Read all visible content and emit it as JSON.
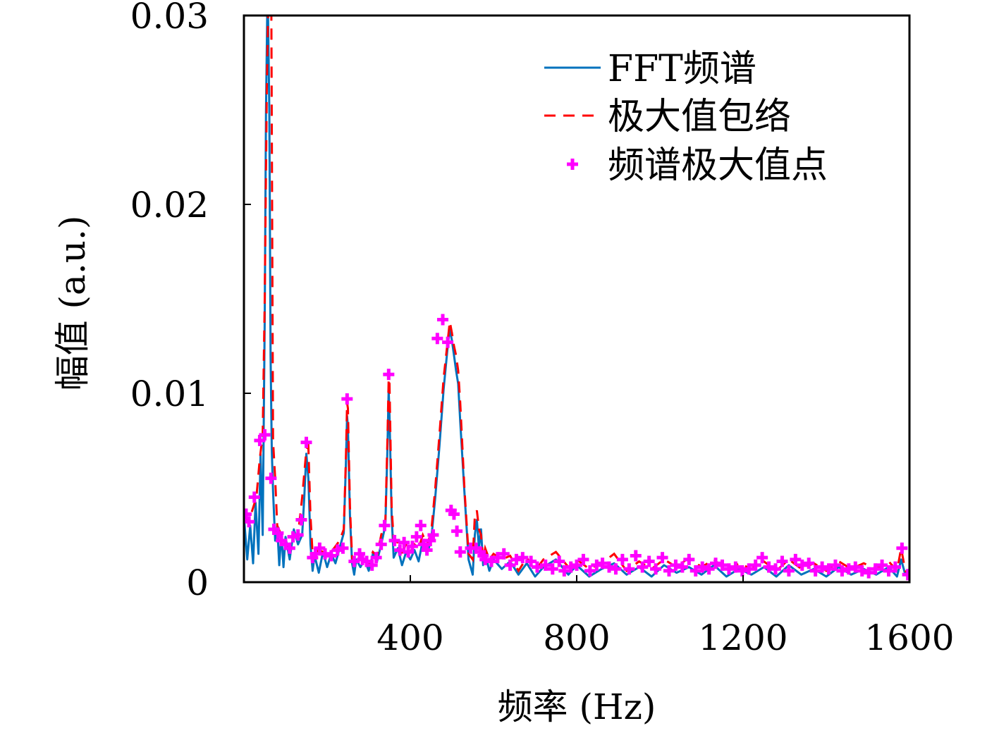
{
  "chart_data": {
    "type": "line",
    "xlabel": "频率 (Hz)",
    "ylabel": "幅值 (a.u.)",
    "xlim": [
      0,
      1600
    ],
    "ylim": [
      0,
      0.03
    ],
    "xticks": [
      400,
      800,
      1200,
      1600
    ],
    "xtick_labels": [
      "400",
      "800",
      "1200",
      "1600"
    ],
    "yticks": [
      0,
      0.01,
      0.02,
      0.03
    ],
    "ytick_labels": [
      "0",
      "0.01",
      "0.02",
      "0.03"
    ],
    "grid": false,
    "legend_position": "top-right",
    "legend": [
      "FFT频谱",
      "极大值包络",
      "频谱极大值点"
    ],
    "colors": {
      "fft": "#0072BD",
      "envelope": "#FF0000",
      "peaks": "#FF00FF"
    },
    "series": [
      {
        "name": "FFT频谱",
        "style": "solid",
        "x": [
          0,
          8,
          15,
          22,
          28,
          35,
          40,
          45,
          50,
          53,
          56,
          58,
          61,
          64,
          67,
          70,
          75,
          80,
          85,
          90,
          95,
          100,
          110,
          120,
          130,
          140,
          145,
          150,
          155,
          160,
          165,
          170,
          180,
          190,
          200,
          210,
          220,
          230,
          240,
          245,
          248,
          250,
          255,
          260,
          265,
          270,
          280,
          290,
          300,
          310,
          320,
          330,
          340,
          345,
          348,
          350,
          355,
          360,
          370,
          380,
          390,
          400,
          410,
          420,
          430,
          440,
          450,
          460,
          470,
          480,
          490,
          495,
          500,
          505,
          510,
          515,
          520,
          530,
          540,
          550,
          555,
          560,
          565,
          570,
          575,
          580,
          590,
          600,
          620,
          640,
          660,
          680,
          700,
          720,
          750,
          780,
          800,
          830,
          860,
          890,
          920,
          950,
          980,
          1010,
          1040,
          1070,
          1100,
          1130,
          1160,
          1190,
          1220,
          1250,
          1280,
          1310,
          1340,
          1370,
          1400,
          1430,
          1460,
          1490,
          1520,
          1550,
          1570,
          1580,
          1590,
          1600
        ],
        "y": [
          0.0035,
          0.0012,
          0.003,
          0.001,
          0.0042,
          0.0015,
          0.0068,
          0.0025,
          0.014,
          0.025,
          0.03,
          0.03,
          0.025,
          0.012,
          0.007,
          0.0048,
          0.0022,
          0.003,
          0.0009,
          0.0026,
          0.0008,
          0.0024,
          0.0012,
          0.0028,
          0.002,
          0.0025,
          0.0045,
          0.0068,
          0.0055,
          0.002,
          0.0006,
          0.0014,
          0.0005,
          0.0016,
          0.0008,
          0.0015,
          0.001,
          0.0018,
          0.0026,
          0.0062,
          0.0088,
          0.0082,
          0.0035,
          0.001,
          0.0004,
          0.0012,
          0.0008,
          0.0012,
          0.0006,
          0.0015,
          0.0011,
          0.002,
          0.003,
          0.007,
          0.0102,
          0.0088,
          0.0035,
          0.0013,
          0.0018,
          0.0009,
          0.0016,
          0.0012,
          0.0017,
          0.0011,
          0.0022,
          0.0015,
          0.0022,
          0.0045,
          0.0072,
          0.0102,
          0.0125,
          0.0134,
          0.0128,
          0.012,
          0.0112,
          0.0105,
          0.0085,
          0.0048,
          0.0012,
          0.0004,
          0.0025,
          0.0033,
          0.0018,
          0.0028,
          0.0009,
          0.0015,
          0.0006,
          0.0012,
          0.0007,
          0.0011,
          0.0004,
          0.001,
          0.0003,
          0.0008,
          0.0012,
          0.0004,
          0.0009,
          0.0003,
          0.0007,
          0.001,
          0.0004,
          0.0008,
          0.0003,
          0.0009,
          0.0005,
          0.0008,
          0.0004,
          0.0009,
          0.0003,
          0.0007,
          0.0004,
          0.0008,
          0.0003,
          0.0009,
          0.0004,
          0.0007,
          0.0003,
          0.0008,
          0.0004,
          0.0007,
          0.0004,
          0.0008,
          0.0003,
          0.0012,
          0.0004,
          0.0003
        ]
      },
      {
        "name": "极大值包络",
        "style": "dashed",
        "x": [
          0,
          10,
          20,
          30,
          38,
          45,
          50,
          55,
          58,
          60,
          63,
          66,
          70,
          75,
          80,
          90,
          100,
          110,
          120,
          130,
          140,
          150,
          155,
          160,
          165,
          170,
          180,
          190,
          200,
          210,
          220,
          230,
          240,
          245,
          248,
          250,
          255,
          260,
          265,
          270,
          280,
          290,
          300,
          310,
          320,
          330,
          340,
          345,
          348,
          350,
          355,
          360,
          370,
          380,
          390,
          400,
          410,
          420,
          430,
          440,
          450,
          460,
          470,
          480,
          490,
          495,
          500,
          505,
          510,
          515,
          520,
          530,
          540,
          550,
          555,
          560,
          565,
          570,
          575,
          580,
          590,
          600,
          620,
          640,
          660,
          680,
          700,
          720,
          750,
          780,
          800,
          830,
          860,
          890,
          920,
          950,
          980,
          1010,
          1040,
          1070,
          1100,
          1130,
          1160,
          1190,
          1220,
          1250,
          1280,
          1310,
          1340,
          1370,
          1400,
          1430,
          1460,
          1490,
          1520,
          1550,
          1570,
          1580,
          1590,
          1600
        ],
        "y": [
          0.0036,
          0.0032,
          0.0038,
          0.0045,
          0.0065,
          0.0078,
          0.015,
          0.026,
          0.03,
          0.03,
          0.03,
          0.03,
          0.0075,
          0.0055,
          0.003,
          0.0025,
          0.002,
          0.0018,
          0.0025,
          0.0025,
          0.0045,
          0.007,
          0.0072,
          0.0035,
          0.0015,
          0.0015,
          0.0017,
          0.0016,
          0.0015,
          0.0016,
          0.0019,
          0.0022,
          0.0028,
          0.0065,
          0.0095,
          0.0092,
          0.004,
          0.0013,
          0.001,
          0.0012,
          0.0011,
          0.0012,
          0.001,
          0.0016,
          0.0014,
          0.0025,
          0.0032,
          0.0075,
          0.0108,
          0.0105,
          0.004,
          0.0022,
          0.0021,
          0.0016,
          0.002,
          0.0016,
          0.002,
          0.0018,
          0.0025,
          0.002,
          0.0026,
          0.005,
          0.0078,
          0.0108,
          0.0128,
          0.0138,
          0.0132,
          0.0125,
          0.012,
          0.0112,
          0.0095,
          0.005,
          0.0015,
          0.0012,
          0.0035,
          0.0038,
          0.0028,
          0.0025,
          0.0012,
          0.0018,
          0.0012,
          0.0015,
          0.0012,
          0.0014,
          0.0006,
          0.0013,
          0.0006,
          0.0012,
          0.0016,
          0.0008,
          0.0012,
          0.0007,
          0.001,
          0.0015,
          0.0006,
          0.0011,
          0.0007,
          0.0012,
          0.0008,
          0.0013,
          0.0008,
          0.0012,
          0.0006,
          0.001,
          0.0007,
          0.0011,
          0.0006,
          0.0012,
          0.0007,
          0.001,
          0.0006,
          0.0011,
          0.0007,
          0.001,
          0.0007,
          0.0011,
          0.0006,
          0.0018,
          0.0006,
          0.0004
        ]
      },
      {
        "name": "频谱极大值点",
        "style": "markers",
        "x": [
          5,
          12,
          25,
          38,
          50,
          65,
          72,
          82,
          90,
          100,
          110,
          118,
          130,
          138,
          150,
          165,
          172,
          182,
          195,
          210,
          225,
          238,
          248,
          265,
          278,
          285,
          295,
          308,
          318,
          330,
          338,
          348,
          362,
          375,
          385,
          395,
          405,
          415,
          425,
          432,
          440,
          448,
          455,
          465,
          478,
          490,
          498,
          505,
          512,
          520,
          545,
          558,
          568,
          575,
          580,
          595,
          610,
          625,
          640,
          655,
          670,
          690,
          705,
          725,
          742,
          758,
          770,
          786,
          800,
          816,
          832,
          848,
          862,
          878,
          894,
          910,
          926,
          942,
          958,
          974,
          990,
          1006,
          1022,
          1038,
          1054,
          1070,
          1086,
          1102,
          1118,
          1134,
          1150,
          1166,
          1182,
          1198,
          1214,
          1230,
          1246,
          1262,
          1278,
          1294,
          1310,
          1326,
          1342,
          1358,
          1374,
          1390,
          1406,
          1422,
          1438,
          1454,
          1470,
          1486,
          1502,
          1518,
          1534,
          1550,
          1566,
          1582,
          1596
        ],
        "y": [
          0.0036,
          0.0032,
          0.0045,
          0.0075,
          0.0078,
          0.0055,
          0.0028,
          0.0026,
          0.0022,
          0.002,
          0.0018,
          0.0024,
          0.0025,
          0.0033,
          0.0074,
          0.0013,
          0.0015,
          0.0018,
          0.0015,
          0.0014,
          0.0017,
          0.0018,
          0.0097,
          0.0011,
          0.0015,
          0.0012,
          0.0011,
          0.0009,
          0.0013,
          0.002,
          0.003,
          0.011,
          0.0022,
          0.0017,
          0.0021,
          0.0016,
          0.0019,
          0.0024,
          0.003,
          0.002,
          0.0017,
          0.0022,
          0.0025,
          0.0129,
          0.0139,
          0.0127,
          0.0038,
          0.0036,
          0.0027,
          0.0016,
          0.0018,
          0.0018,
          0.0016,
          0.0014,
          0.0012,
          0.0011,
          0.0013,
          0.0015,
          0.0009,
          0.0012,
          0.0013,
          0.0011,
          0.0008,
          0.0009,
          0.0007,
          0.0011,
          0.0006,
          0.0008,
          0.0009,
          0.0012,
          0.0006,
          0.0009,
          0.001,
          0.0008,
          0.0007,
          0.0012,
          0.0007,
          0.0014,
          0.0008,
          0.0011,
          0.0007,
          0.0013,
          0.0006,
          0.0009,
          0.0008,
          0.0012,
          0.0006,
          0.0008,
          0.0007,
          0.001,
          0.0009,
          0.0007,
          0.0008,
          0.0006,
          0.0007,
          0.0009,
          0.0013,
          0.0008,
          0.0007,
          0.0011,
          0.0006,
          0.0012,
          0.0009,
          0.001,
          0.0006,
          0.0008,
          0.0007,
          0.0009,
          0.0006,
          0.0007,
          0.0008,
          0.0006,
          0.0005,
          0.0007,
          0.0009,
          0.0006,
          0.0008,
          0.0018,
          0.0004
        ]
      }
    ]
  }
}
